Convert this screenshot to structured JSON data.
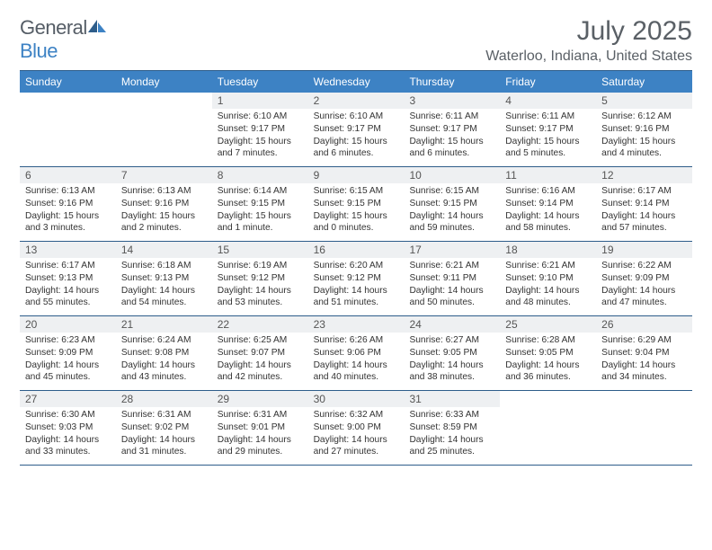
{
  "brand": {
    "part1": "General",
    "part2": "Blue"
  },
  "title": "July 2025",
  "location": "Waterloo, Indiana, United States",
  "colors": {
    "header_bg": "#3d82c4",
    "border": "#2e5d8a",
    "daynum_bg": "#eef0f2",
    "text_muted": "#5a6066",
    "body_text": "#333333"
  },
  "day_headers": [
    "Sunday",
    "Monday",
    "Tuesday",
    "Wednesday",
    "Thursday",
    "Friday",
    "Saturday"
  ],
  "weeks": [
    [
      null,
      null,
      {
        "n": "1",
        "sr": "6:10 AM",
        "ss": "9:17 PM",
        "dl": "15 hours and 7 minutes."
      },
      {
        "n": "2",
        "sr": "6:10 AM",
        "ss": "9:17 PM",
        "dl": "15 hours and 6 minutes."
      },
      {
        "n": "3",
        "sr": "6:11 AM",
        "ss": "9:17 PM",
        "dl": "15 hours and 6 minutes."
      },
      {
        "n": "4",
        "sr": "6:11 AM",
        "ss": "9:17 PM",
        "dl": "15 hours and 5 minutes."
      },
      {
        "n": "5",
        "sr": "6:12 AM",
        "ss": "9:16 PM",
        "dl": "15 hours and 4 minutes."
      }
    ],
    [
      {
        "n": "6",
        "sr": "6:13 AM",
        "ss": "9:16 PM",
        "dl": "15 hours and 3 minutes."
      },
      {
        "n": "7",
        "sr": "6:13 AM",
        "ss": "9:16 PM",
        "dl": "15 hours and 2 minutes."
      },
      {
        "n": "8",
        "sr": "6:14 AM",
        "ss": "9:15 PM",
        "dl": "15 hours and 1 minute."
      },
      {
        "n": "9",
        "sr": "6:15 AM",
        "ss": "9:15 PM",
        "dl": "15 hours and 0 minutes."
      },
      {
        "n": "10",
        "sr": "6:15 AM",
        "ss": "9:15 PM",
        "dl": "14 hours and 59 minutes."
      },
      {
        "n": "11",
        "sr": "6:16 AM",
        "ss": "9:14 PM",
        "dl": "14 hours and 58 minutes."
      },
      {
        "n": "12",
        "sr": "6:17 AM",
        "ss": "9:14 PM",
        "dl": "14 hours and 57 minutes."
      }
    ],
    [
      {
        "n": "13",
        "sr": "6:17 AM",
        "ss": "9:13 PM",
        "dl": "14 hours and 55 minutes."
      },
      {
        "n": "14",
        "sr": "6:18 AM",
        "ss": "9:13 PM",
        "dl": "14 hours and 54 minutes."
      },
      {
        "n": "15",
        "sr": "6:19 AM",
        "ss": "9:12 PM",
        "dl": "14 hours and 53 minutes."
      },
      {
        "n": "16",
        "sr": "6:20 AM",
        "ss": "9:12 PM",
        "dl": "14 hours and 51 minutes."
      },
      {
        "n": "17",
        "sr": "6:21 AM",
        "ss": "9:11 PM",
        "dl": "14 hours and 50 minutes."
      },
      {
        "n": "18",
        "sr": "6:21 AM",
        "ss": "9:10 PM",
        "dl": "14 hours and 48 minutes."
      },
      {
        "n": "19",
        "sr": "6:22 AM",
        "ss": "9:09 PM",
        "dl": "14 hours and 47 minutes."
      }
    ],
    [
      {
        "n": "20",
        "sr": "6:23 AM",
        "ss": "9:09 PM",
        "dl": "14 hours and 45 minutes."
      },
      {
        "n": "21",
        "sr": "6:24 AM",
        "ss": "9:08 PM",
        "dl": "14 hours and 43 minutes."
      },
      {
        "n": "22",
        "sr": "6:25 AM",
        "ss": "9:07 PM",
        "dl": "14 hours and 42 minutes."
      },
      {
        "n": "23",
        "sr": "6:26 AM",
        "ss": "9:06 PM",
        "dl": "14 hours and 40 minutes."
      },
      {
        "n": "24",
        "sr": "6:27 AM",
        "ss": "9:05 PM",
        "dl": "14 hours and 38 minutes."
      },
      {
        "n": "25",
        "sr": "6:28 AM",
        "ss": "9:05 PM",
        "dl": "14 hours and 36 minutes."
      },
      {
        "n": "26",
        "sr": "6:29 AM",
        "ss": "9:04 PM",
        "dl": "14 hours and 34 minutes."
      }
    ],
    [
      {
        "n": "27",
        "sr": "6:30 AM",
        "ss": "9:03 PM",
        "dl": "14 hours and 33 minutes."
      },
      {
        "n": "28",
        "sr": "6:31 AM",
        "ss": "9:02 PM",
        "dl": "14 hours and 31 minutes."
      },
      {
        "n": "29",
        "sr": "6:31 AM",
        "ss": "9:01 PM",
        "dl": "14 hours and 29 minutes."
      },
      {
        "n": "30",
        "sr": "6:32 AM",
        "ss": "9:00 PM",
        "dl": "14 hours and 27 minutes."
      },
      {
        "n": "31",
        "sr": "6:33 AM",
        "ss": "8:59 PM",
        "dl": "14 hours and 25 minutes."
      },
      null,
      null
    ]
  ],
  "labels": {
    "sunrise": "Sunrise:",
    "sunset": "Sunset:",
    "daylight": "Daylight:"
  }
}
